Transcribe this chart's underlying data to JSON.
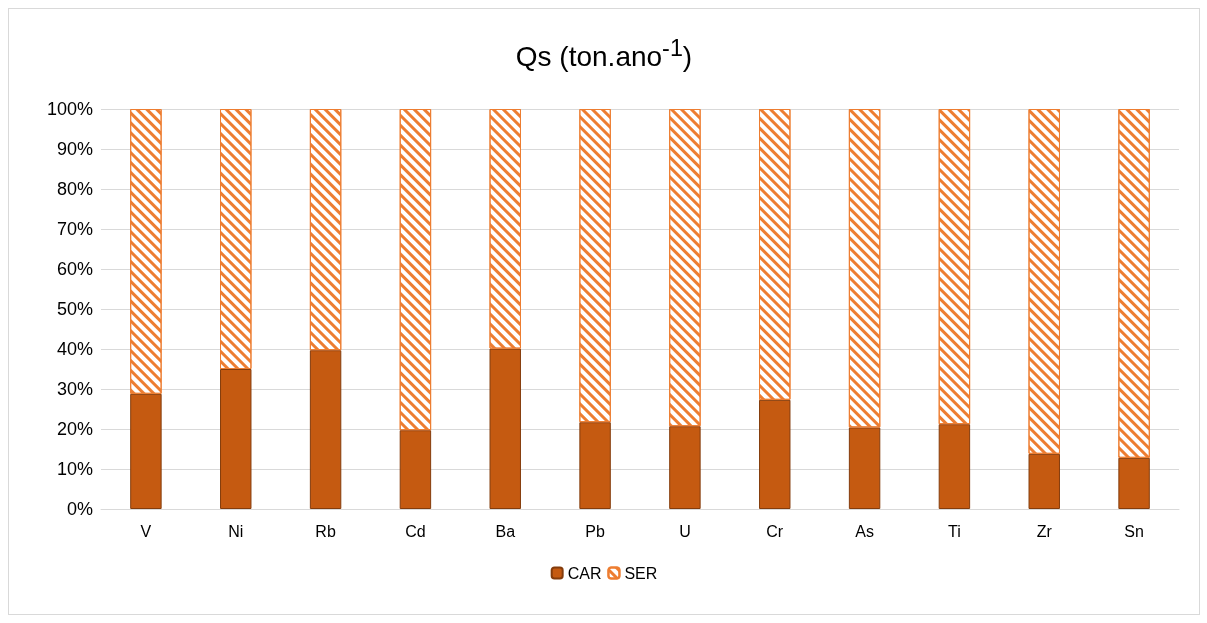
{
  "chart_data": {
    "type": "bar",
    "title": "Qs (ton.ano$^{-1}$)",
    "stacked": true,
    "categories": [
      "V",
      "Ni",
      "Rb",
      "Cd",
      "Ba",
      "Pb",
      "U",
      "Cr",
      "As",
      "Ti",
      "Zr",
      "Sn"
    ],
    "series": [
      {
        "name": "CAR",
        "color": "#c55a11",
        "values": [
          28.8,
          35.0,
          39.7,
          19.7,
          40.1,
          21.7,
          20.7,
          27.3,
          20.4,
          21.2,
          13.8,
          12.8
        ]
      },
      {
        "name": "SER",
        "color": "#ed7d31",
        "values": [
          71.2,
          65.0,
          60.3,
          80.3,
          59.9,
          78.3,
          79.3,
          72.7,
          79.6,
          78.8,
          86.2,
          87.2
        ]
      }
    ],
    "ylim": [
      0,
      100
    ],
    "yticks": [
      {
        "value": 0,
        "label": "0%"
      },
      {
        "value": 10,
        "label": "10%"
      },
      {
        "value": 20,
        "label": "20%"
      },
      {
        "value": 30,
        "label": "30%"
      },
      {
        "value": 40,
        "label": "40%"
      },
      {
        "value": 50,
        "label": "50%"
      },
      {
        "value": 60,
        "label": "60%"
      },
      {
        "value": 70,
        "label": "70%"
      },
      {
        "value": 80,
        "label": "80%"
      },
      {
        "value": 90,
        "label": "90%"
      },
      {
        "value": 100,
        "label": "100%"
      }
    ],
    "grid": "y",
    "legend": "bottom"
  }
}
